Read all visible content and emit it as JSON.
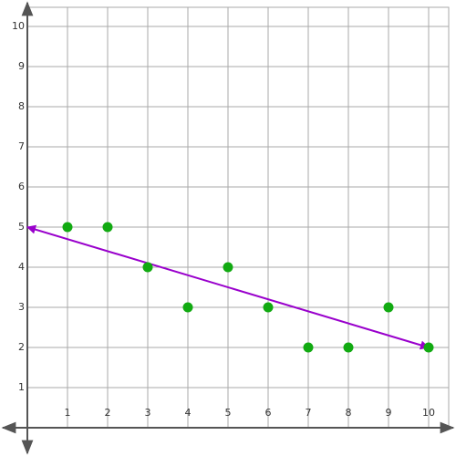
{
  "chart_data": {
    "type": "scatter",
    "xlim": [
      0,
      10
    ],
    "ylim": [
      0,
      10
    ],
    "xticks": [
      1,
      2,
      3,
      4,
      5,
      6,
      7,
      8,
      9,
      10
    ],
    "yticks": [
      1,
      2,
      3,
      4,
      5,
      6,
      7,
      8,
      9,
      10
    ],
    "grid": true,
    "series": [
      {
        "type": "scatter",
        "color": "#11aa11",
        "x": [
          1,
          2,
          3,
          4,
          5,
          6,
          7,
          8,
          9,
          10
        ],
        "y": [
          5,
          5,
          4,
          3,
          4,
          3,
          2,
          2,
          3,
          2
        ]
      },
      {
        "type": "line",
        "color": "#9900cc",
        "x": [
          0,
          10
        ],
        "y": [
          5,
          2
        ]
      }
    ]
  }
}
